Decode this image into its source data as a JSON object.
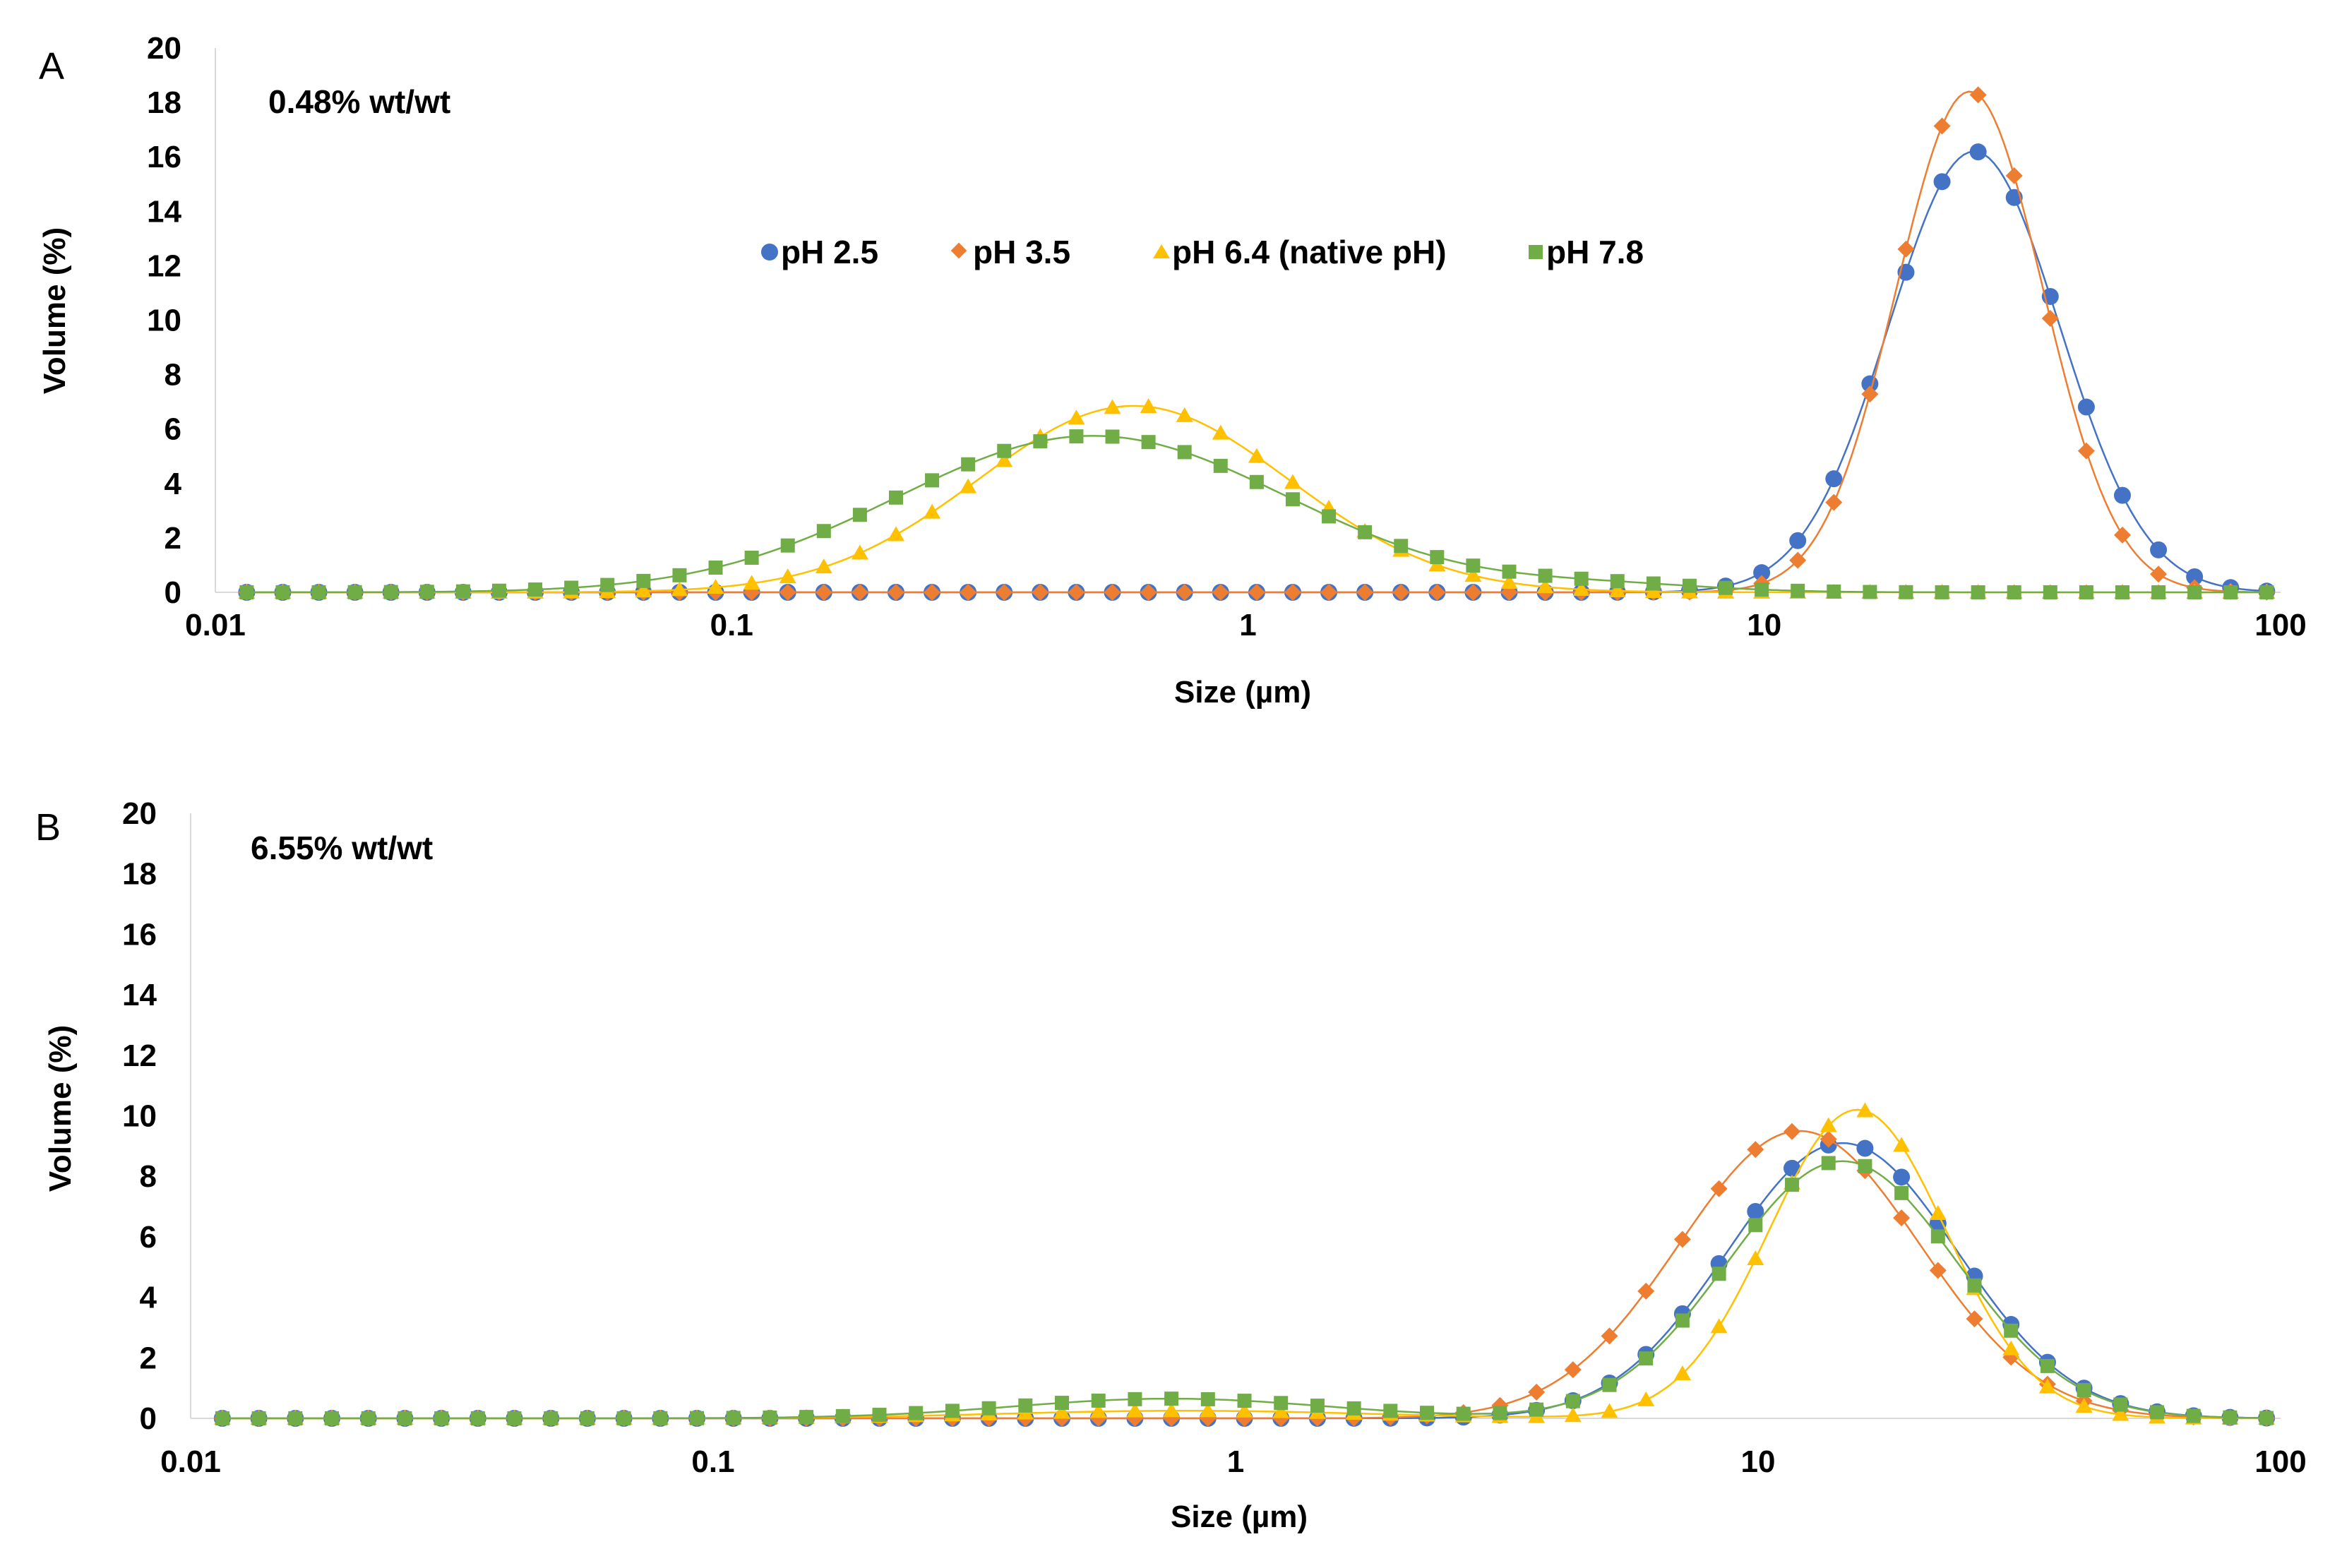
{
  "chart_data": [
    {
      "type": "scatter",
      "panel_label": "A",
      "annotation": "0.48% wt/wt",
      "xlabel": "Size (µm)",
      "ylabel": "Volume (%)",
      "x_scale": "log",
      "xlim": [
        0.01,
        100
      ],
      "ylim": [
        0,
        20
      ],
      "x_ticks": [
        0.01,
        0.1,
        1,
        10,
        100
      ],
      "x_tick_labels": [
        "0.01",
        "0.1",
        "1",
        "10",
        "100"
      ],
      "y_ticks": [
        0,
        2,
        4,
        6,
        8,
        10,
        12,
        14,
        16,
        18,
        20
      ],
      "y_tick_labels": [
        "0",
        "2",
        "4",
        "6",
        "8",
        "10",
        "12",
        "14",
        "16",
        "18",
        "20"
      ],
      "grid": false,
      "legend": {
        "placement": "top-center",
        "entries": [
          "pH 2.5",
          "pH 3.5",
          "pH 6.4 (native pH)",
          "pH 7.8"
        ]
      },
      "series": [
        {
          "name": "pH 2.5",
          "color": "#4472C4",
          "marker": "circle",
          "peaks": [
            {
              "mu": 25.5,
              "sigma": 0.165,
              "amp": 16.2
            }
          ],
          "baseline": 0
        },
        {
          "name": "pH 3.5",
          "color": "#ED7D31",
          "marker": "diamond",
          "peaks": [
            {
              "mu": 25.0,
              "sigma": 0.142,
              "amp": 18.4
            }
          ],
          "baseline": 0
        },
        {
          "name": "pH 6.4 (native pH)",
          "color": "#FFC000",
          "marker": "triangle",
          "peaks": [
            {
              "mu": 0.6,
              "sigma": 0.3,
              "amp": 6.85
            }
          ],
          "baseline": 0
        },
        {
          "name": "pH 7.8",
          "color": "#70AD47",
          "marker": "square",
          "peaks": [
            {
              "mu": 0.5,
              "sigma": 0.38,
              "amp": 5.75
            },
            {
              "mu": 5.0,
              "sigma": 0.2,
              "amp": 0.25
            }
          ],
          "baseline": 0
        }
      ]
    },
    {
      "type": "scatter",
      "panel_label": "B",
      "annotation": "6.55% wt/wt",
      "xlabel": "Size (µm)",
      "ylabel": "Volume (%)",
      "x_scale": "log",
      "xlim": [
        0.01,
        100
      ],
      "ylim": [
        0,
        20
      ],
      "x_ticks": [
        0.01,
        0.1,
        1,
        10,
        100
      ],
      "x_tick_labels": [
        "0.01",
        "0.1",
        "1",
        "10",
        "100"
      ],
      "y_ticks": [
        0,
        2,
        4,
        6,
        8,
        10,
        12,
        14,
        16,
        18,
        20
      ],
      "y_tick_labels": [
        "0",
        "2",
        "4",
        "6",
        "8",
        "10",
        "12",
        "14",
        "16",
        "18",
        "20"
      ],
      "grid": false,
      "series": [
        {
          "name": "pH 2.5",
          "color": "#4472C4",
          "marker": "circle",
          "peaks": [
            {
              "mu": 14.5,
              "sigma": 0.22,
              "amp": 9.1
            }
          ],
          "baseline": 0
        },
        {
          "name": "pH 3.5",
          "color": "#ED7D31",
          "marker": "diamond",
          "peaks": [
            {
              "mu": 12.0,
              "sigma": 0.23,
              "amp": 9.5
            }
          ],
          "baseline": 0
        },
        {
          "name": "pH 6.4 (native pH)",
          "color": "#FFC000",
          "marker": "triangle",
          "peaks": [
            {
              "mu": 15.5,
              "sigma": 0.17,
              "amp": 10.2
            },
            {
              "mu": 0.8,
              "sigma": 0.35,
              "amp": 0.25
            }
          ],
          "baseline": 0
        },
        {
          "name": "pH 7.8",
          "color": "#70AD47",
          "marker": "square",
          "peaks": [
            {
              "mu": 14.5,
              "sigma": 0.22,
              "amp": 8.5
            },
            {
              "mu": 0.75,
              "sigma": 0.3,
              "amp": 0.65
            }
          ],
          "baseline": 0
        }
      ]
    }
  ]
}
